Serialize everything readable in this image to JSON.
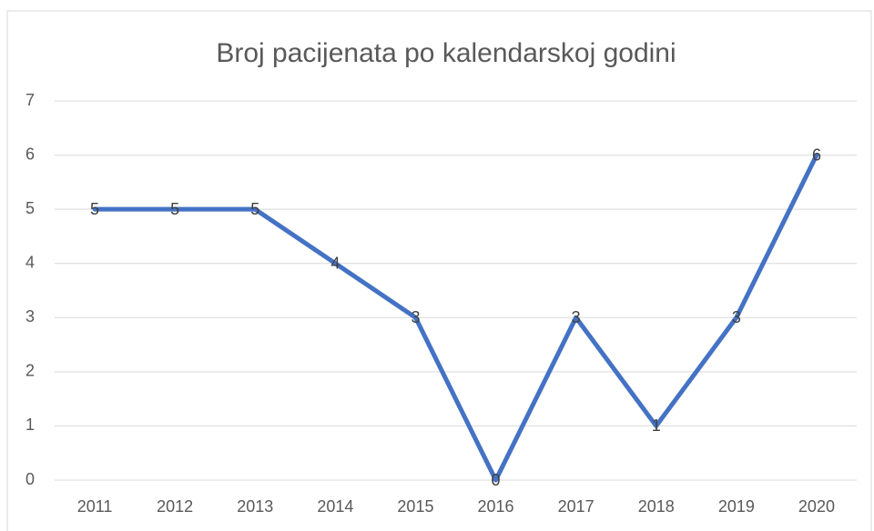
{
  "chart_data": {
    "type": "line",
    "title": "Broj pacijenata po kalendarskoj godini",
    "categories": [
      "2011",
      "2012",
      "2013",
      "2014",
      "2015",
      "2016",
      "2017",
      "2018",
      "2019",
      "2020"
    ],
    "values": [
      5,
      5,
      5,
      4,
      3,
      0,
      3,
      1,
      3,
      6
    ],
    "color": "#4472c4",
    "ylim": [
      0,
      7
    ],
    "yticks": [
      0,
      1,
      2,
      3,
      4,
      5,
      6,
      7
    ],
    "grid": true,
    "data_labels": true
  }
}
